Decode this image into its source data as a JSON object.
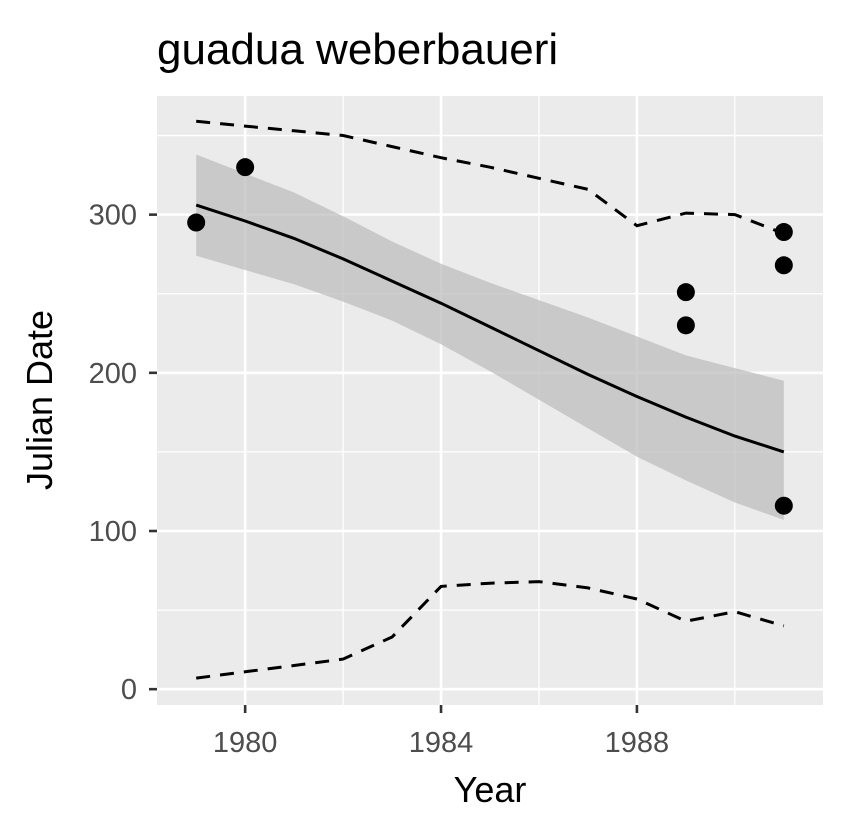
{
  "chart_data": {
    "type": "line",
    "title": "guadua weberbaueri",
    "xlabel": "Year",
    "ylabel": "Julian Date",
    "xlim": [
      1978.2,
      1991.8
    ],
    "ylim": [
      -10,
      375
    ],
    "x_ticks": [
      1980,
      1984,
      1988
    ],
    "x_tick_labels": [
      "1980",
      "1984",
      "1988"
    ],
    "y_ticks": [
      0,
      100,
      200,
      300
    ],
    "y_tick_labels": [
      "0",
      "100",
      "200",
      "300"
    ],
    "grid": true,
    "legend": "none",
    "colors": {
      "panel": "#ebebeb",
      "grid": "#ffffff",
      "points": "#000000",
      "fit_line": "#000000",
      "ribbon": "#bdbdbd",
      "bounds": "#000000"
    },
    "points": [
      {
        "x": 1979,
        "y": 295
      },
      {
        "x": 1980,
        "y": 330
      },
      {
        "x": 1989,
        "y": 251
      },
      {
        "x": 1989,
        "y": 230
      },
      {
        "x": 1991,
        "y": 289
      },
      {
        "x": 1991,
        "y": 268
      },
      {
        "x": 1991,
        "y": 116
      }
    ],
    "fit": {
      "x": [
        1979,
        1980,
        1981,
        1982,
        1983,
        1984,
        1985,
        1986,
        1987,
        1988,
        1989,
        1990,
        1991
      ],
      "y": [
        306,
        296,
        285,
        272,
        258,
        244,
        229,
        214,
        199,
        185,
        172,
        160,
        150
      ],
      "lower": [
        274,
        265,
        256,
        245,
        233,
        218,
        201,
        183,
        165,
        147,
        132,
        118,
        107
      ],
      "upper": [
        338,
        326,
        314,
        299,
        283,
        269,
        257,
        246,
        235,
        223,
        211,
        203,
        195
      ]
    },
    "upper_bound": {
      "x": [
        1979,
        1980,
        1981,
        1982,
        1983,
        1984,
        1985,
        1986,
        1987,
        1988,
        1989,
        1990,
        1991
      ],
      "y": [
        359,
        356,
        353,
        350,
        343,
        336,
        330,
        323,
        316,
        293,
        301,
        300,
        288
      ]
    },
    "lower_bound": {
      "x": [
        1979,
        1980,
        1981,
        1982,
        1983,
        1984,
        1985,
        1986,
        1987,
        1988,
        1989,
        1990,
        1991
      ],
      "y": [
        7,
        11,
        15,
        19,
        33,
        65,
        67,
        68,
        64,
        57,
        43,
        49,
        40
      ]
    }
  }
}
